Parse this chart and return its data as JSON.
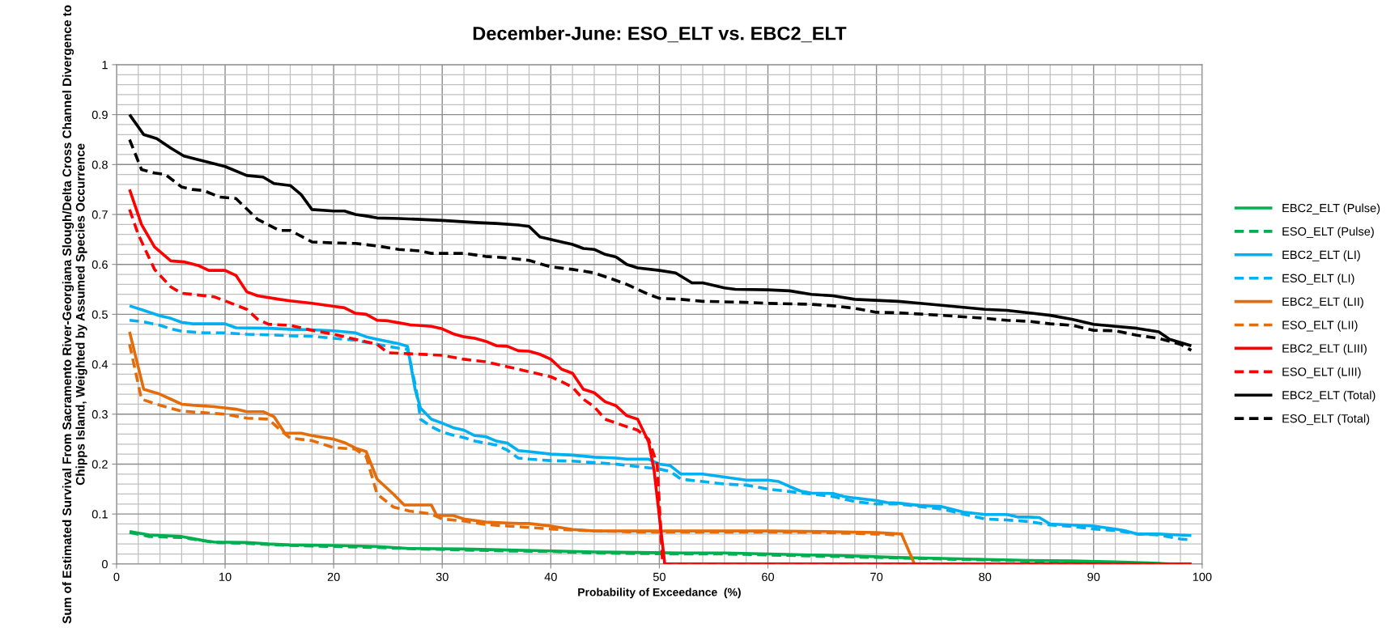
{
  "chart_data": {
    "type": "line",
    "title": "December-June: ESO_ELT vs. EBC2_ELT",
    "xlabel": "Probability of Exceedance  (%)",
    "ylabel": "Sum of Estimated Survival From Sacramento River-Georgiana Slough/Delta Cross Channel Divergence to Chipps Island, Weighted by Assumed Species Occurrence",
    "xlim": [
      0,
      100
    ],
    "ylim": [
      0,
      1
    ],
    "xticks": [
      0,
      10,
      20,
      30,
      40,
      50,
      60,
      70,
      80,
      90,
      100
    ],
    "yticks": [
      0,
      0.1,
      0.2,
      0.3,
      0.4,
      0.5,
      0.6,
      0.7,
      0.8,
      0.9,
      1
    ],
    "grid": true,
    "legend": "right",
    "marker": "none",
    "series": [
      {
        "name": "EBC2_ELT (Pulse)",
        "color": "#00b050",
        "line_style": "solid",
        "x": [
          1.2,
          3,
          6,
          8,
          9,
          12,
          14,
          16,
          20,
          24,
          27,
          32,
          36,
          40,
          44,
          48,
          52,
          56,
          60,
          64,
          68,
          72,
          76,
          80,
          84,
          88,
          92,
          95,
          97,
          99
        ],
        "values": [
          0.065,
          0.058,
          0.055,
          0.047,
          0.044,
          0.043,
          0.04,
          0.038,
          0.037,
          0.035,
          0.031,
          0.03,
          0.028,
          0.026,
          0.024,
          0.023,
          0.022,
          0.022,
          0.02,
          0.018,
          0.016,
          0.013,
          0.011,
          0.009,
          0.007,
          0.006,
          0.004,
          0.002,
          0.0,
          0.0
        ]
      },
      {
        "name": "ESO_ELT (Pulse)",
        "color": "#00b050",
        "line_style": "dashed",
        "x": [
          1.2,
          3,
          6,
          9,
          12,
          16,
          20,
          24,
          28,
          32,
          36,
          40,
          44,
          48,
          52,
          56,
          60,
          64,
          68,
          72,
          76,
          80,
          84,
          88,
          92,
          95,
          97,
          99
        ],
        "values": [
          0.063,
          0.055,
          0.053,
          0.043,
          0.041,
          0.037,
          0.035,
          0.033,
          0.03,
          0.028,
          0.026,
          0.025,
          0.022,
          0.021,
          0.02,
          0.02,
          0.018,
          0.016,
          0.014,
          0.012,
          0.01,
          0.008,
          0.006,
          0.005,
          0.003,
          0.001,
          0.0,
          0.0
        ]
      },
      {
        "name": "EBC2_ELT (LI)",
        "color": "#00b0f0",
        "line_style": "solid",
        "x": [
          1.2,
          2.5,
          4,
          5,
          6,
          7,
          10,
          11,
          14,
          16,
          18,
          20,
          22,
          23,
          24,
          26,
          26.8,
          27.5,
          28,
          29,
          30,
          31,
          32,
          33,
          34,
          35,
          36,
          37,
          38,
          40,
          42,
          44,
          46,
          47,
          49,
          50,
          51,
          52,
          54,
          56,
          58,
          60,
          61,
          62,
          63,
          64,
          66,
          67,
          68,
          70,
          71,
          72,
          74,
          75,
          76,
          78,
          80,
          82,
          83,
          84,
          85,
          86,
          88,
          90,
          92,
          93,
          94,
          96,
          97,
          99
        ],
        "values": [
          0.517,
          0.508,
          0.497,
          0.492,
          0.484,
          0.481,
          0.481,
          0.473,
          0.472,
          0.47,
          0.469,
          0.467,
          0.463,
          0.455,
          0.45,
          0.441,
          0.436,
          0.35,
          0.312,
          0.29,
          0.282,
          0.273,
          0.268,
          0.257,
          0.255,
          0.246,
          0.242,
          0.227,
          0.225,
          0.22,
          0.218,
          0.214,
          0.212,
          0.21,
          0.21,
          0.2,
          0.197,
          0.18,
          0.18,
          0.174,
          0.168,
          0.168,
          0.165,
          0.155,
          0.146,
          0.142,
          0.141,
          0.135,
          0.132,
          0.127,
          0.123,
          0.122,
          0.117,
          0.116,
          0.115,
          0.104,
          0.099,
          0.099,
          0.094,
          0.094,
          0.093,
          0.08,
          0.078,
          0.076,
          0.07,
          0.066,
          0.06,
          0.06,
          0.059,
          0.057
        ]
      },
      {
        "name": "ESO_ELT (LI)",
        "color": "#00b0f0",
        "line_style": "dashed",
        "x": [
          1.2,
          2.5,
          4,
          5,
          6,
          8,
          10,
          12,
          14,
          16,
          18,
          20,
          22,
          24,
          26,
          26.8,
          27.6,
          28,
          29,
          30,
          31,
          32,
          33,
          35,
          36,
          37,
          38,
          40,
          42,
          44,
          46,
          48,
          50,
          51,
          52,
          54,
          56,
          58,
          60,
          62,
          64,
          66,
          68,
          70,
          72,
          74,
          76,
          78,
          80,
          82,
          84,
          86,
          88,
          90,
          92,
          94,
          96,
          98,
          99
        ],
        "values": [
          0.488,
          0.485,
          0.478,
          0.471,
          0.466,
          0.463,
          0.463,
          0.46,
          0.459,
          0.457,
          0.456,
          0.452,
          0.448,
          0.44,
          0.432,
          0.43,
          0.35,
          0.29,
          0.275,
          0.264,
          0.258,
          0.253,
          0.246,
          0.238,
          0.228,
          0.212,
          0.21,
          0.207,
          0.206,
          0.203,
          0.2,
          0.195,
          0.19,
          0.185,
          0.17,
          0.165,
          0.16,
          0.158,
          0.15,
          0.145,
          0.14,
          0.135,
          0.125,
          0.12,
          0.12,
          0.115,
          0.11,
          0.1,
          0.09,
          0.088,
          0.085,
          0.078,
          0.075,
          0.07,
          0.067,
          0.06,
          0.058,
          0.05,
          0.048
        ]
      },
      {
        "name": "EBC2_ELT (LII)",
        "color": "#e46c0a",
        "line_style": "solid",
        "x": [
          1.2,
          2.5,
          4,
          5,
          6,
          7,
          9,
          11,
          12,
          13.5,
          14.5,
          15.5,
          17,
          18,
          20,
          21,
          22,
          23,
          24,
          25.5,
          26.5,
          28,
          29,
          29.5,
          31,
          32,
          34,
          36,
          37,
          38,
          40,
          42,
          44,
          46,
          50,
          55,
          60,
          65,
          70,
          72.3,
          73.5,
          99
        ],
        "values": [
          0.465,
          0.35,
          0.34,
          0.33,
          0.32,
          0.318,
          0.315,
          0.31,
          0.305,
          0.305,
          0.295,
          0.262,
          0.262,
          0.257,
          0.25,
          0.243,
          0.232,
          0.225,
          0.17,
          0.14,
          0.118,
          0.118,
          0.118,
          0.097,
          0.097,
          0.09,
          0.084,
          0.082,
          0.081,
          0.081,
          0.076,
          0.069,
          0.066,
          0.066,
          0.066,
          0.066,
          0.066,
          0.065,
          0.063,
          0.06,
          0.0,
          0.0
        ]
      },
      {
        "name": "ESO_ELT (LII)",
        "color": "#e46c0a",
        "line_style": "dashed",
        "x": [
          1.2,
          2.3,
          4,
          5,
          6,
          8,
          10,
          12,
          14,
          15,
          16,
          18,
          20,
          22,
          23,
          24,
          25.5,
          27,
          29,
          30,
          32,
          34,
          36,
          38,
          40,
          42,
          44,
          48,
          52,
          60,
          65,
          70,
          72
        ],
        "values": [
          0.44,
          0.33,
          0.318,
          0.312,
          0.306,
          0.303,
          0.3,
          0.292,
          0.29,
          0.27,
          0.252,
          0.247,
          0.233,
          0.23,
          0.215,
          0.14,
          0.114,
          0.106,
          0.1,
          0.09,
          0.086,
          0.079,
          0.076,
          0.073,
          0.07,
          0.068,
          0.066,
          0.064,
          0.064,
          0.064,
          0.063,
          0.06,
          0.058
        ]
      },
      {
        "name": "EBC2_ELT (LIII)",
        "color": "#ff0000",
        "line_style": "solid",
        "x": [
          1.2,
          2.3,
          3.5,
          5,
          6.2,
          7.5,
          8.5,
          10,
          11,
          12,
          13,
          15,
          16,
          18,
          20,
          21,
          22,
          23,
          24,
          25,
          26,
          27,
          29,
          30,
          31,
          32,
          33,
          34,
          35,
          36,
          37,
          38,
          39,
          40,
          41,
          42,
          43,
          44,
          45,
          46,
          47,
          48,
          49,
          49.5,
          50.5,
          99
        ],
        "values": [
          0.75,
          0.68,
          0.635,
          0.607,
          0.605,
          0.598,
          0.588,
          0.588,
          0.578,
          0.545,
          0.537,
          0.53,
          0.527,
          0.522,
          0.516,
          0.513,
          0.502,
          0.5,
          0.488,
          0.487,
          0.483,
          0.479,
          0.476,
          0.471,
          0.461,
          0.455,
          0.452,
          0.446,
          0.437,
          0.436,
          0.427,
          0.426,
          0.42,
          0.41,
          0.39,
          0.382,
          0.35,
          0.343,
          0.325,
          0.317,
          0.297,
          0.29,
          0.245,
          0.19,
          0.0,
          0.0
        ]
      },
      {
        "name": "ESO_ELT (LIII)",
        "color": "#ff0000",
        "line_style": "dashed",
        "x": [
          1.2,
          2,
          3.5,
          5,
          6,
          7,
          9,
          10,
          12,
          13,
          14,
          16,
          18,
          20,
          22,
          24,
          25,
          27,
          30,
          32,
          34,
          36,
          38,
          40,
          41,
          42,
          43,
          44,
          45,
          47,
          48,
          49,
          49.8,
          50.3,
          99
        ],
        "values": [
          0.71,
          0.66,
          0.59,
          0.555,
          0.542,
          0.54,
          0.535,
          0.527,
          0.51,
          0.49,
          0.48,
          0.478,
          0.468,
          0.46,
          0.45,
          0.44,
          0.423,
          0.421,
          0.418,
          0.41,
          0.405,
          0.395,
          0.385,
          0.375,
          0.365,
          0.354,
          0.33,
          0.315,
          0.29,
          0.275,
          0.268,
          0.25,
          0.2,
          0.0,
          0.0
        ]
      },
      {
        "name": "EBC2_ELT (Total)",
        "color": "#000000",
        "line_style": "solid",
        "x": [
          1.2,
          2.5,
          3.7,
          5,
          6.2,
          7.5,
          10,
          12,
          13.5,
          14.5,
          16,
          17,
          18,
          20,
          21,
          22,
          23,
          24,
          26,
          28,
          30,
          33,
          35,
          37,
          38,
          39,
          41,
          42,
          43,
          44,
          45,
          46,
          47,
          48,
          50,
          51.5,
          53,
          54,
          56,
          57,
          60,
          62,
          64,
          66,
          68,
          70,
          72,
          74,
          76,
          78,
          80,
          82,
          84,
          86,
          88,
          90,
          92,
          94,
          96,
          97,
          99
        ],
        "values": [
          0.9,
          0.86,
          0.852,
          0.833,
          0.817,
          0.81,
          0.796,
          0.778,
          0.775,
          0.762,
          0.758,
          0.74,
          0.71,
          0.707,
          0.707,
          0.7,
          0.697,
          0.693,
          0.692,
          0.69,
          0.688,
          0.684,
          0.682,
          0.679,
          0.676,
          0.655,
          0.645,
          0.64,
          0.632,
          0.63,
          0.62,
          0.615,
          0.6,
          0.593,
          0.588,
          0.583,
          0.563,
          0.563,
          0.553,
          0.55,
          0.549,
          0.547,
          0.54,
          0.537,
          0.53,
          0.528,
          0.526,
          0.522,
          0.518,
          0.514,
          0.51,
          0.508,
          0.503,
          0.498,
          0.49,
          0.48,
          0.476,
          0.472,
          0.465,
          0.45,
          0.437
        ]
      },
      {
        "name": "ESO_ELT (Total)",
        "color": "#000000",
        "line_style": "dashed",
        "x": [
          1.2,
          2.3,
          3.5,
          4.5,
          6,
          7,
          8,
          9.5,
          11,
          13,
          15,
          16,
          18,
          20,
          22,
          24,
          26,
          28,
          29,
          32,
          34,
          36,
          38,
          40,
          42,
          44,
          46,
          47,
          49,
          50,
          52,
          54,
          58,
          60,
          64,
          66,
          68,
          70,
          72,
          76,
          80,
          82,
          84,
          86,
          88,
          90,
          92,
          94,
          96,
          98,
          99
        ],
        "values": [
          0.85,
          0.79,
          0.783,
          0.78,
          0.755,
          0.75,
          0.748,
          0.735,
          0.732,
          0.69,
          0.668,
          0.668,
          0.645,
          0.643,
          0.642,
          0.637,
          0.63,
          0.627,
          0.622,
          0.622,
          0.616,
          0.613,
          0.608,
          0.595,
          0.59,
          0.583,
          0.568,
          0.56,
          0.54,
          0.532,
          0.53,
          0.526,
          0.524,
          0.522,
          0.52,
          0.517,
          0.512,
          0.504,
          0.503,
          0.498,
          0.492,
          0.488,
          0.486,
          0.481,
          0.478,
          0.468,
          0.467,
          0.458,
          0.452,
          0.44,
          0.428
        ]
      }
    ]
  }
}
